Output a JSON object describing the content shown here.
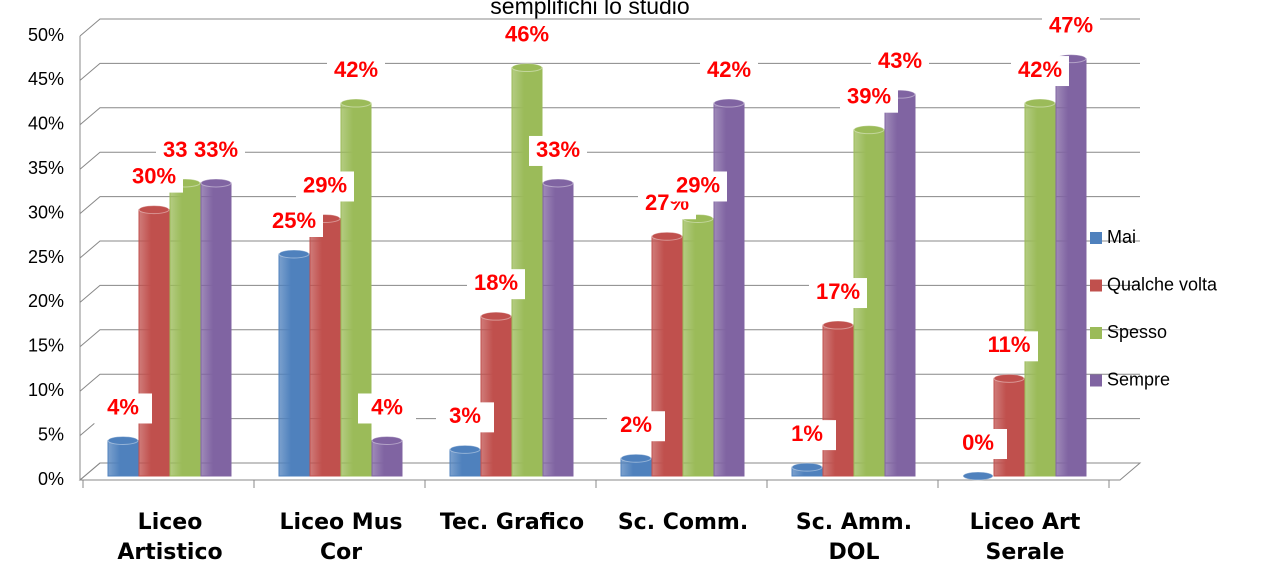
{
  "chart_data": {
    "type": "bar",
    "title": "semplifichi lo studio",
    "categories": [
      "Liceo Artistico",
      "Liceo Mus Cor",
      "Tec. Grafico",
      "Sc. Comm.",
      "Sc. Amm. DOL",
      "Liceo Art Serale"
    ],
    "series": [
      {
        "name": "Mai",
        "color": "#4f81bd",
        "values": [
          4,
          25,
          3,
          2,
          1,
          0
        ],
        "value_labels": [
          "4%",
          "25%",
          "3%",
          "2%",
          "1%",
          "0%"
        ]
      },
      {
        "name": "Qualche volta",
        "color": "#c0504d",
        "values": [
          30,
          29,
          18,
          27,
          17,
          11
        ],
        "value_labels": [
          "30%",
          "29%",
          "18%",
          "27%",
          "17%",
          "11%"
        ]
      },
      {
        "name": "Spesso",
        "color": "#9bbb59",
        "values": [
          33,
          42,
          46,
          29,
          39,
          42
        ],
        "value_labels": [
          "33%",
          "42%",
          "46%",
          "29%",
          "39%",
          "42%"
        ]
      },
      {
        "name": "Sempre",
        "color": "#8064a2",
        "values": [
          33,
          4,
          33,
          42,
          43,
          47
        ],
        "value_labels": [
          "33%",
          "4%",
          "33%",
          "42%",
          "43%",
          "47%"
        ]
      }
    ],
    "ylim": [
      0,
      50
    ],
    "yticks": [
      {
        "value": 0,
        "label": "0%"
      },
      {
        "value": 5,
        "label": "5%"
      },
      {
        "value": 10,
        "label": "10%"
      },
      {
        "value": 15,
        "label": "15%"
      },
      {
        "value": 20,
        "label": "20%"
      },
      {
        "value": 25,
        "label": "25%"
      },
      {
        "value": 30,
        "label": "30%"
      },
      {
        "value": 35,
        "label": "35%"
      },
      {
        "value": 40,
        "label": "40%"
      },
      {
        "value": 45,
        "label": "45%"
      },
      {
        "value": 50,
        "label": "50%"
      }
    ],
    "grid": true,
    "legend": "right"
  }
}
